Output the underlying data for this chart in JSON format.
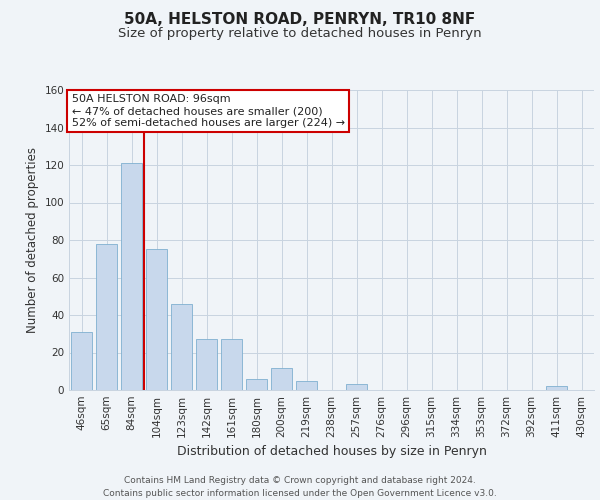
{
  "title": "50A, HELSTON ROAD, PENRYN, TR10 8NF",
  "subtitle": "Size of property relative to detached houses in Penryn",
  "xlabel": "Distribution of detached houses by size in Penryn",
  "ylabel": "Number of detached properties",
  "categories": [
    "46sqm",
    "65sqm",
    "84sqm",
    "104sqm",
    "123sqm",
    "142sqm",
    "161sqm",
    "180sqm",
    "200sqm",
    "219sqm",
    "238sqm",
    "257sqm",
    "276sqm",
    "296sqm",
    "315sqm",
    "334sqm",
    "353sqm",
    "372sqm",
    "392sqm",
    "411sqm",
    "430sqm"
  ],
  "values": [
    31,
    78,
    121,
    75,
    46,
    27,
    27,
    6,
    12,
    5,
    0,
    3,
    0,
    0,
    0,
    0,
    0,
    0,
    0,
    2,
    0
  ],
  "bar_color": "#c8d8ec",
  "bar_edge_color": "#7fb0d0",
  "vline_color": "#cc0000",
  "vline_x": 2.5,
  "annotation_title": "50A HELSTON ROAD: 96sqm",
  "annotation_line1": "← 47% of detached houses are smaller (200)",
  "annotation_line2": "52% of semi-detached houses are larger (224) →",
  "annotation_box_facecolor": "#ffffff",
  "annotation_box_edgecolor": "#cc0000",
  "ylim": [
    0,
    160
  ],
  "yticks": [
    0,
    20,
    40,
    60,
    80,
    100,
    120,
    140,
    160
  ],
  "footer_line1": "Contains HM Land Registry data © Crown copyright and database right 2024.",
  "footer_line2": "Contains public sector information licensed under the Open Government Licence v3.0.",
  "background_color": "#f0f4f8",
  "grid_color": "#c8d4e0",
  "title_fontsize": 11,
  "subtitle_fontsize": 9.5,
  "axis_label_fontsize": 9,
  "ylabel_fontsize": 8.5,
  "tick_fontsize": 7.5,
  "annotation_fontsize": 8,
  "footer_fontsize": 6.5
}
